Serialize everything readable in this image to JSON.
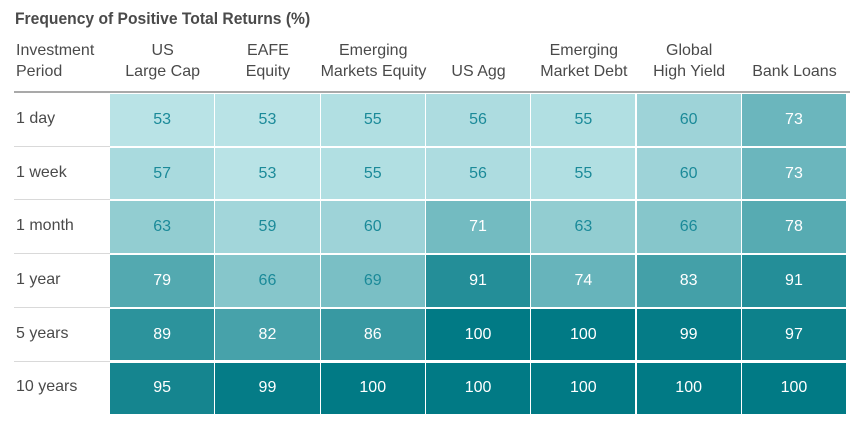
{
  "title": "Frequency of Positive Total Returns (%)",
  "chart_data": {
    "type": "table",
    "title": "Frequency of Positive Total Returns (%)",
    "row_header": [
      "Investment",
      "Period"
    ],
    "columns": [
      [
        "US",
        "Large Cap"
      ],
      [
        "EAFE",
        "Equity"
      ],
      [
        "Emerging",
        "Markets Equity"
      ],
      [
        "US Agg"
      ],
      [
        "Emerging",
        "Market Debt"
      ],
      [
        "Global",
        "High Yield"
      ],
      [
        "Bank Loans"
      ]
    ],
    "rows": [
      "1 day",
      "1 week",
      "1 month",
      "1 year",
      "5 years",
      "10 years"
    ],
    "values": [
      [
        53,
        53,
        55,
        56,
        55,
        60,
        73
      ],
      [
        57,
        53,
        55,
        56,
        55,
        60,
        73
      ],
      [
        63,
        59,
        60,
        71,
        63,
        66,
        78
      ],
      [
        79,
        66,
        69,
        91,
        74,
        83,
        91
      ],
      [
        89,
        82,
        86,
        100,
        100,
        99,
        97
      ],
      [
        95,
        99,
        100,
        100,
        100,
        100,
        100
      ]
    ]
  },
  "colors": {
    "scale_low": "#b9e3e6",
    "scale_high": "#017a85",
    "text_dark": "#1b8a99",
    "text_light": "#ffffff"
  }
}
